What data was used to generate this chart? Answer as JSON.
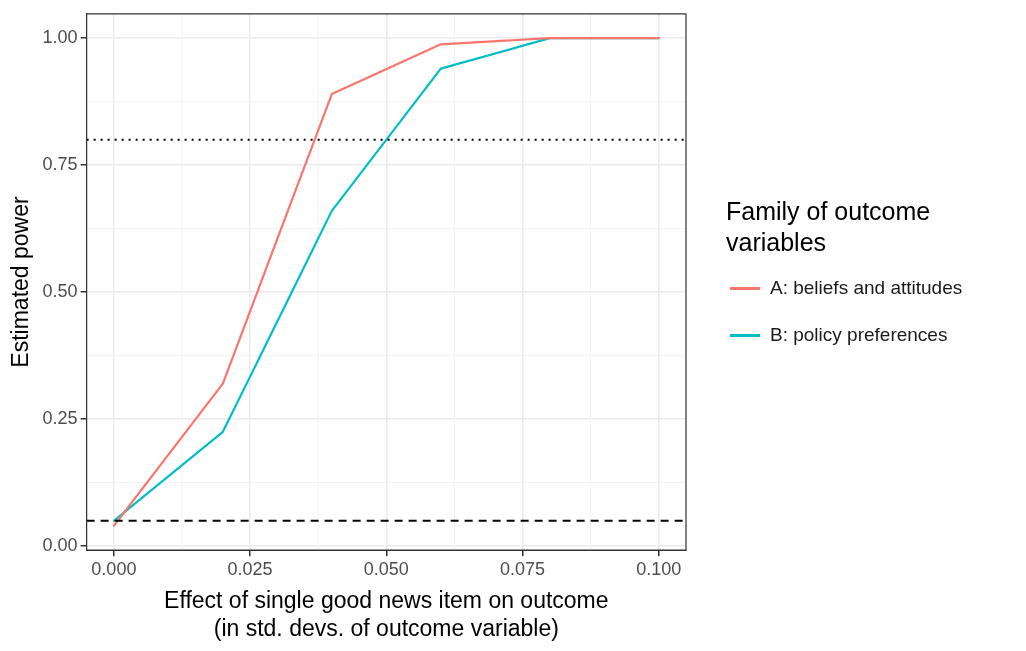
{
  "chart_data": {
    "type": "line",
    "xlabel": "Effect of single good news item on outcome\n(in std. devs. of outcome variable)",
    "ylabel": "Estimated power",
    "legend_title": "Family of outcome variables",
    "legend": "right",
    "grid": true,
    "marker": "none",
    "x": [
      0,
      0.02,
      0.04,
      0.06,
      0.08,
      0.1
    ],
    "series": [
      {
        "name": "A: beliefs and attitudes",
        "color": "#f8766d",
        "values": [
          0.04,
          0.32,
          0.89,
          0.988,
          1.0,
          1.0
        ]
      },
      {
        "name": "B: policy preferences",
        "color": "#00bfc4",
        "values": [
          0.05,
          0.225,
          0.66,
          0.94,
          1.0,
          1.0
        ]
      }
    ],
    "xlim": [
      -0.005,
      0.105
    ],
    "xticks": [
      {
        "value": 0,
        "label": "0.000"
      },
      {
        "value": 0.025,
        "label": "0.025"
      },
      {
        "value": 0.05,
        "label": "0.050"
      },
      {
        "value": 0.075,
        "label": "0.075"
      },
      {
        "value": 0.1,
        "label": "0.100"
      }
    ],
    "ylim": [
      -0.008,
      1.048
    ],
    "yticks": [
      {
        "value": 0,
        "label": "0.00"
      },
      {
        "value": 0.25,
        "label": "0.25"
      },
      {
        "value": 0.5,
        "label": "0.50"
      },
      {
        "value": 0.75,
        "label": "0.75"
      },
      {
        "value": 1,
        "label": "1.00"
      }
    ],
    "ref_lines": [
      {
        "axis": "y",
        "value": 0.8,
        "line_style": "dotted",
        "color": "#000000"
      },
      {
        "axis": "y",
        "value": 0.05,
        "line_style": "dashed",
        "color": "#000000"
      }
    ]
  }
}
